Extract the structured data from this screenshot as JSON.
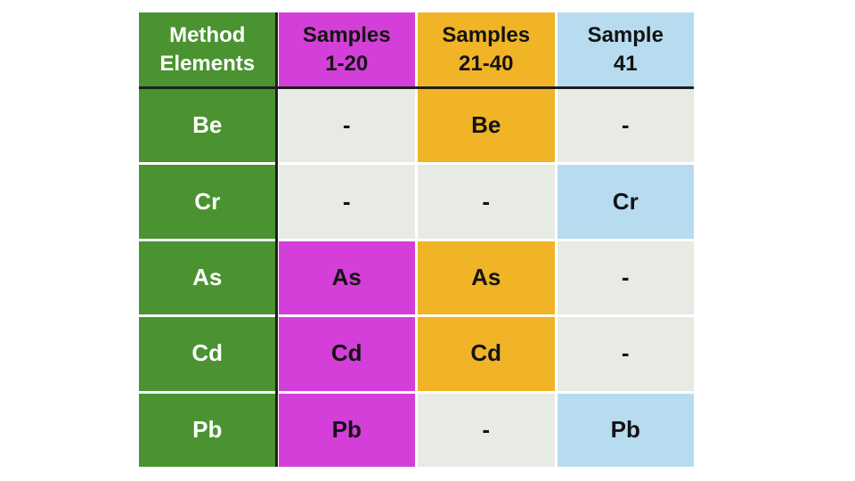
{
  "colors": {
    "green": "#4a9330",
    "magenta": "#d33fd8",
    "orange": "#f0b426",
    "blue": "#b7dbef",
    "gray": "#e7ebe3",
    "line": "#1e1e1e",
    "text_on_green": "#ffffff",
    "text": "#131313",
    "page_background": "#ffffff"
  },
  "chart_data": {
    "type": "table",
    "title": "",
    "columns": [
      "Method Elements",
      "Samples 1-20",
      "Samples 21-40",
      "Sample 41"
    ],
    "rows": [
      [
        "Be",
        "-",
        "Be",
        "-"
      ],
      [
        "Cr",
        "-",
        "-",
        "Cr"
      ],
      [
        "As",
        "As",
        "As",
        "-"
      ],
      [
        "Cd",
        "Cd",
        "Cd",
        "-"
      ],
      [
        "Pb",
        "Pb",
        "-",
        "Pb"
      ]
    ],
    "cell_highlight_colors": [
      [
        "#4a9330",
        "#e7ebe3",
        "#f0b426",
        "#e7ebe3"
      ],
      [
        "#4a9330",
        "#e7ebe3",
        "#e7ebe3",
        "#b7dbef"
      ],
      [
        "#4a9330",
        "#d33fd8",
        "#f0b426",
        "#e7ebe3"
      ],
      [
        "#4a9330",
        "#d33fd8",
        "#f0b426",
        "#e7ebe3"
      ],
      [
        "#4a9330",
        "#d33fd8",
        "#e7ebe3",
        "#b7dbef"
      ]
    ]
  },
  "table": {
    "header": [
      {
        "text": "Method\nElements",
        "color": "green"
      },
      {
        "text": "Samples\n1-20",
        "color": "magenta"
      },
      {
        "text": "Samples\n21-40",
        "color": "orange"
      },
      {
        "text": "Sample\n41",
        "color": "blue"
      }
    ],
    "rows": [
      {
        "cells": [
          {
            "text": "Be",
            "color": "green"
          },
          {
            "text": "-",
            "color": "gray"
          },
          {
            "text": "Be",
            "color": "orange"
          },
          {
            "text": "-",
            "color": "gray"
          }
        ]
      },
      {
        "cells": [
          {
            "text": "Cr",
            "color": "green"
          },
          {
            "text": "-",
            "color": "gray"
          },
          {
            "text": "-",
            "color": "gray"
          },
          {
            "text": "Cr",
            "color": "blue"
          }
        ]
      },
      {
        "cells": [
          {
            "text": "As",
            "color": "green"
          },
          {
            "text": "As",
            "color": "magenta"
          },
          {
            "text": "As",
            "color": "orange"
          },
          {
            "text": "-",
            "color": "gray"
          }
        ]
      },
      {
        "cells": [
          {
            "text": "Cd",
            "color": "green"
          },
          {
            "text": "Cd",
            "color": "magenta"
          },
          {
            "text": "Cd",
            "color": "orange"
          },
          {
            "text": "-",
            "color": "gray"
          }
        ]
      },
      {
        "cells": [
          {
            "text": "Pb",
            "color": "green"
          },
          {
            "text": "Pb",
            "color": "magenta"
          },
          {
            "text": "-",
            "color": "gray"
          },
          {
            "text": "Pb",
            "color": "blue"
          }
        ]
      }
    ]
  }
}
